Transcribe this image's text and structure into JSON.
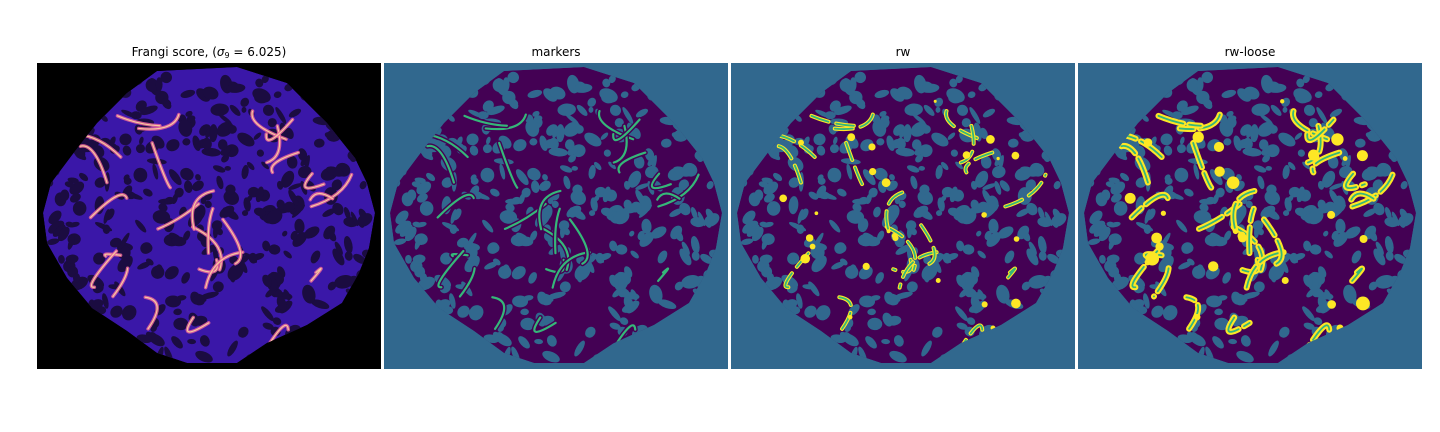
{
  "figure": {
    "panels": [
      {
        "title_prefix": "Frangi score, (",
        "title_symbol": "σ",
        "title_subscript": "9",
        "title_suffix": " = 6.025)",
        "image": "frangi-score-map",
        "colormap": "magma",
        "background": "#000000"
      },
      {
        "title": "markers",
        "image": "marker-label-map",
        "colormap": "viridis",
        "background": "#31688e"
      },
      {
        "title": "rw",
        "image": "random-walker-segmentation",
        "colormap": "viridis",
        "background": "#31688e"
      },
      {
        "title": "rw-loose",
        "image": "random-walker-loose-segmentation",
        "colormap": "viridis",
        "background": "#31688e"
      }
    ],
    "colors": {
      "frangi_black": "#000000",
      "frangi_dark": "#1b0c41",
      "frangi_mid": "#3a17a8",
      "frangi_hot": "#e8649c",
      "frangi_bright": "#fcd5a0",
      "viridis_purple": "#440154",
      "viridis_blue": "#31688e",
      "viridis_teal": "#35b779",
      "viridis_yellow": "#fde725"
    }
  }
}
